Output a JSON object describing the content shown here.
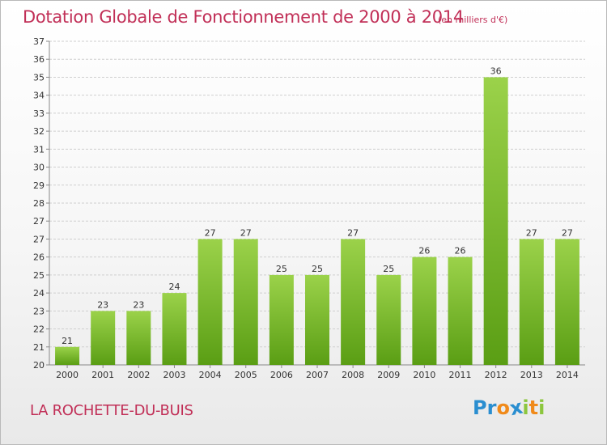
{
  "title": "Dotation Globale de Fonctionnement de 2000 à 2014",
  "unit_note": "(en milliers d'€)",
  "commune": "LA ROCHETTE-DU-BUIS",
  "logo": {
    "text": "Proxiti",
    "letters": [
      "P",
      "r",
      "o",
      "x",
      "i",
      "t",
      "i"
    ],
    "colors": [
      "#2a8ed0",
      "#2a8ed0",
      "#f08a1a",
      "#2a8ed0",
      "#8cc63e",
      "#f08a1a",
      "#8cc63e"
    ]
  },
  "colors": {
    "title": "#c12f57",
    "bar_top": "#9bd24a",
    "bar_bottom": "#5a9e14",
    "grid": "#cfcfcf"
  },
  "chart_data": {
    "type": "bar",
    "title": "Dotation Globale de Fonctionnement de 2000 à 2014",
    "subtitle": "(en milliers d'€)",
    "xlabel": "",
    "ylabel": "",
    "categories": [
      "2000",
      "2001",
      "2002",
      "2003",
      "2004",
      "2005",
      "2006",
      "2007",
      "2008",
      "2009",
      "2010",
      "2011",
      "2012",
      "2013",
      "2014"
    ],
    "values": [
      21,
      23,
      23,
      24,
      27,
      27,
      25,
      25,
      27,
      25,
      26,
      26,
      36,
      27,
      27
    ],
    "y_ticks": [
      "20",
      "21",
      "22",
      "23",
      "24",
      "25",
      "26",
      "27",
      "27",
      "28",
      "29",
      "30",
      "31",
      "32",
      "33",
      "34",
      "35",
      "36",
      "37"
    ],
    "ylim": [
      20,
      37
    ],
    "grid": true,
    "legend": "none"
  }
}
